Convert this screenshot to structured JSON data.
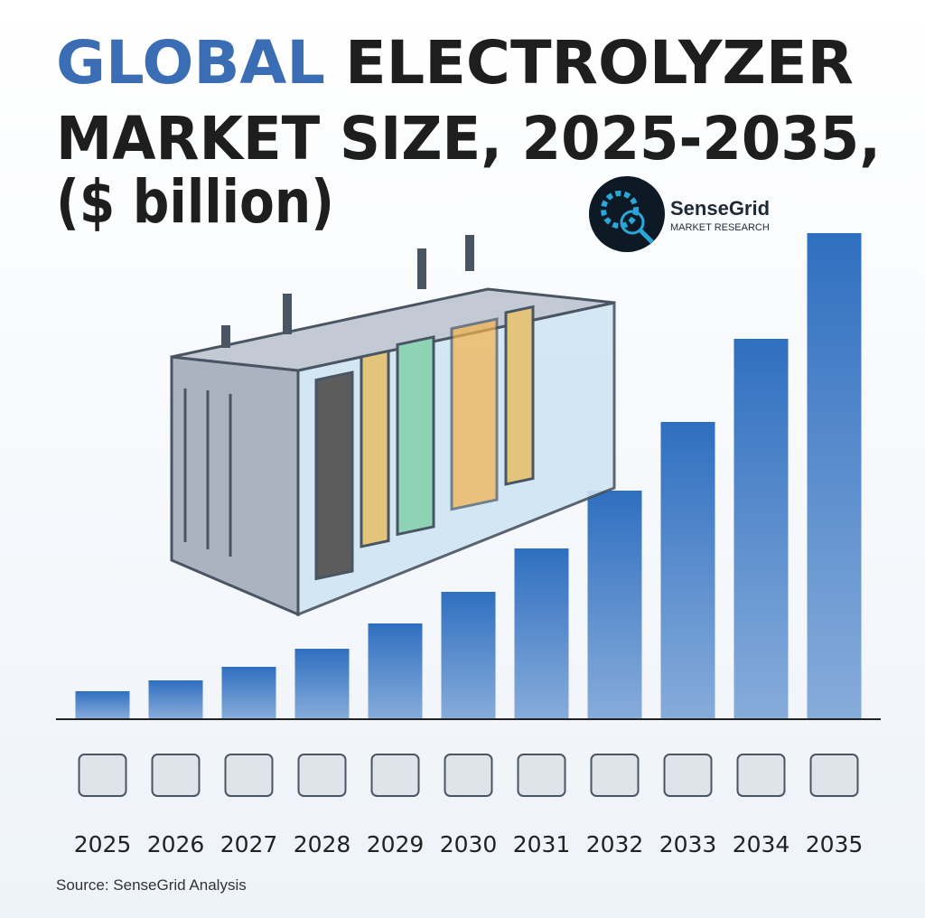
{
  "chart_data": {
    "type": "bar",
    "title": {
      "highlight": "GLOBAL",
      "rest": "ELECTROLYZER",
      "line2": "MARKET SIZE, 2025-2035,",
      "line3": "($ billion)"
    },
    "logo": {
      "name": "SenseGrid",
      "tagline": "MARKET RESEARCH"
    },
    "categories": [
      "2025",
      "2026",
      "2027",
      "2028",
      "2029",
      "2030",
      "2031",
      "2032",
      "2033",
      "2034",
      "2035"
    ],
    "values": [
      30,
      42,
      57,
      77,
      105,
      140,
      188,
      252,
      328,
      420,
      537
    ],
    "color": "#2f6fc0",
    "ylim": [
      0,
      540
    ],
    "source": "Source: SenseGrid Analysis"
  }
}
